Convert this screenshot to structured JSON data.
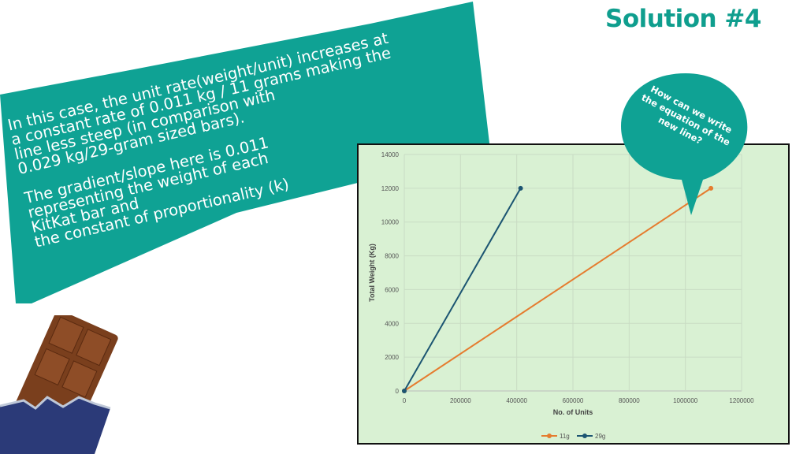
{
  "slide": {
    "title": "Solution #4",
    "explanation": {
      "paragraph1": "In this case, the unit rate(weight/unit) increases at\na constant rate of 0.011 kg / 11 grams making the\nline less steep (in comparison with\n0.029 kg/29-gram sized bars).",
      "paragraph2": "The gradient/slope here is 0.011\nrepresenting the weight of each\nKitKat bar and\nthe constant of proportionality (k)"
    },
    "bubble": "How can we write the equation of the new line?",
    "colors": {
      "teal": "#0fa294",
      "chart_bg": "#d9f1d3",
      "orange": "#e57c2f",
      "navy": "#1c5572"
    }
  },
  "chart_data": {
    "type": "line",
    "title": "",
    "xlabel": "No. of Units",
    "ylabel": "Total Weight (Kg)",
    "xlim": [
      0,
      1200000
    ],
    "ylim": [
      0,
      14000
    ],
    "xticks": [
      "0",
      "200000",
      "400000",
      "600000",
      "800000",
      "1000000",
      "1200000"
    ],
    "yticks": [
      "0",
      "2000",
      "4000",
      "6000",
      "8000",
      "10000",
      "12000",
      "14000"
    ],
    "grid": true,
    "legend_position": "bottom",
    "series": [
      {
        "name": "11g",
        "color": "#e57c2f",
        "x": [
          0,
          1090909
        ],
        "y": [
          0,
          12000
        ]
      },
      {
        "name": "29g",
        "color": "#1c5572",
        "x": [
          0,
          413793
        ],
        "y": [
          0,
          12000
        ]
      }
    ]
  }
}
